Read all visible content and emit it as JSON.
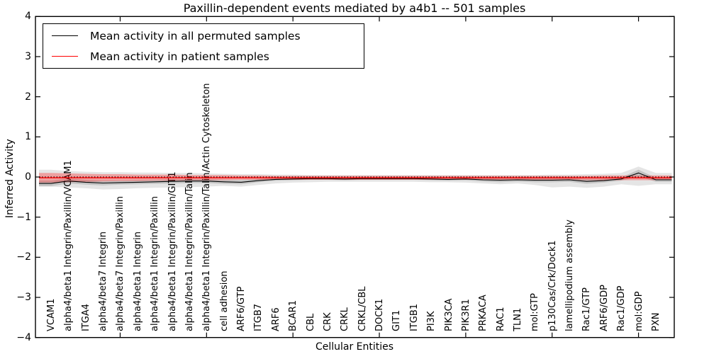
{
  "title": "Paxillin-dependent events mediated by a4b1 -- 501 samples",
  "legend": {
    "items": [
      {
        "label": "Mean activity in all permuted samples",
        "color": "#000000"
      },
      {
        "label": "Mean activity in patient samples",
        "color": "#ff0000"
      }
    ]
  },
  "axes": {
    "ylabel": "Inferred Activity",
    "xlabel": "Cellular Entities",
    "ytick_labels": [
      "4",
      "3",
      "2",
      "1",
      "0",
      "−1",
      "−2",
      "−3",
      "−4"
    ],
    "ytick_values": [
      4,
      3,
      2,
      1,
      0,
      -1,
      -2,
      -3,
      -4
    ]
  },
  "chart_data": {
    "type": "line",
    "title": "Paxillin-dependent events mediated by a4b1 -- 501 samples",
    "xlabel": "Cellular Entities",
    "ylabel": "Inferred Activity",
    "ylim": [
      -4,
      4
    ],
    "grid": false,
    "legend_position": "upper left",
    "x_major_tick_positions": [
      4,
      9,
      14,
      19,
      24,
      29,
      34
    ],
    "categories": [
      "VCAM1",
      "alpha4/beta1 Integrin/Paxillin/VCAM1",
      "ITGA4",
      "alpha4/beta7 Integrin",
      "alpha4/beta7 Integrin/Paxillin",
      "alpha4/beta1 Integrin",
      "alpha4/beta1 Integrin/Paxillin",
      "alpha4/beta1 Integrin/Paxillin/GIT1",
      "alpha4/beta1 Integrin/Paxillin/Talin",
      "alpha4/beta1 Integrin/Paxillin/Talin/Actin Cytoskeleton",
      "cell adhesion",
      "ARF6/GTP",
      "ITGB7",
      "ARF6",
      "BCAR1",
      "CBL",
      "CRK",
      "CRKL",
      "CRKL/CBL",
      "DOCK1",
      "GIT1",
      "ITGB1",
      "PI3K",
      "PIK3CA",
      "PIK3R1",
      "PRKACA",
      "RAC1",
      "TLN1",
      "mol:GTP",
      "p130Cas/Crk/Dock1",
      "lamellipodium assembly",
      "Rac1/GTP",
      "ARF6/GDP",
      "Rac1/GDP",
      "mol:GDP",
      "PXN"
    ],
    "series": [
      {
        "name": "Mean activity in all permuted samples",
        "color": "#000000",
        "width": 1.1,
        "values": [
          -0.16,
          -0.1,
          -0.13,
          -0.15,
          -0.14,
          -0.13,
          -0.12,
          -0.11,
          -0.1,
          -0.1,
          -0.12,
          -0.13,
          -0.09,
          -0.06,
          -0.05,
          -0.04,
          -0.04,
          -0.05,
          -0.04,
          -0.04,
          -0.04,
          -0.04,
          -0.05,
          -0.06,
          -0.05,
          -0.07,
          -0.08,
          -0.07,
          -0.08,
          -0.08,
          -0.07,
          -0.11,
          -0.09,
          -0.05,
          0.1,
          -0.07
        ]
      },
      {
        "name": "Mean activity in patient samples",
        "color": "#ff0000",
        "width": 1.4,
        "values": [
          -0.02,
          -0.02,
          -0.02,
          -0.02,
          -0.02,
          -0.02,
          -0.02,
          -0.02,
          -0.02,
          -0.02,
          -0.02,
          -0.02,
          -0.02,
          -0.02,
          -0.02,
          -0.02,
          -0.02,
          -0.02,
          -0.02,
          -0.02,
          -0.02,
          -0.02,
          -0.02,
          -0.02,
          -0.02,
          -0.02,
          -0.02,
          -0.02,
          -0.02,
          -0.02,
          -0.02,
          -0.02,
          -0.02,
          -0.02,
          -0.02,
          -0.02
        ]
      }
    ],
    "bands": [
      {
        "name": "permuted-range-outer",
        "color": "#000000",
        "opacity": 0.1,
        "upper": [
          0.18,
          0.15,
          0.13,
          0.12,
          0.12,
          0.11,
          0.11,
          0.1,
          0.1,
          0.09,
          0.08,
          0.07,
          0.07,
          0.06,
          0.06,
          0.05,
          0.05,
          0.05,
          0.05,
          0.05,
          0.05,
          0.05,
          0.05,
          0.05,
          0.05,
          0.05,
          0.05,
          0.05,
          0.05,
          0.06,
          0.06,
          0.07,
          0.08,
          0.1,
          0.26,
          0.1
        ],
        "lower": [
          -0.24,
          -0.26,
          -0.28,
          -0.31,
          -0.3,
          -0.28,
          -0.27,
          -0.26,
          -0.25,
          -0.24,
          -0.22,
          -0.24,
          -0.2,
          -0.16,
          -0.14,
          -0.13,
          -0.12,
          -0.12,
          -0.12,
          -0.12,
          -0.12,
          -0.12,
          -0.13,
          -0.13,
          -0.14,
          -0.16,
          -0.18,
          -0.16,
          -0.2,
          -0.26,
          -0.24,
          -0.27,
          -0.24,
          -0.18,
          -0.22,
          -0.18
        ]
      },
      {
        "name": "permuted-range-inner",
        "color": "#000000",
        "opacity": 0.14,
        "upper": [
          -0.09,
          -0.04,
          -0.07,
          -0.09,
          -0.09,
          -0.08,
          -0.07,
          -0.06,
          -0.05,
          -0.05,
          -0.07,
          -0.08,
          -0.05,
          -0.03,
          -0.02,
          -0.01,
          -0.01,
          -0.02,
          -0.01,
          -0.01,
          -0.01,
          -0.01,
          -0.02,
          -0.03,
          -0.02,
          -0.03,
          -0.03,
          -0.03,
          -0.03,
          -0.03,
          -0.02,
          -0.05,
          -0.04,
          -0.01,
          0.18,
          -0.02
        ],
        "lower": [
          -0.23,
          -0.16,
          -0.19,
          -0.21,
          -0.19,
          -0.18,
          -0.17,
          -0.16,
          -0.15,
          -0.15,
          -0.17,
          -0.18,
          -0.13,
          -0.09,
          -0.08,
          -0.07,
          -0.07,
          -0.08,
          -0.07,
          -0.07,
          -0.07,
          -0.07,
          -0.08,
          -0.09,
          -0.08,
          -0.11,
          -0.13,
          -0.11,
          -0.13,
          -0.13,
          -0.12,
          -0.17,
          -0.14,
          -0.09,
          0.02,
          -0.12
        ]
      },
      {
        "name": "patient-range",
        "color": "#ff0000",
        "opacity": 0.3,
        "upper": [
          0.1,
          0.09,
          0.08,
          0.07,
          0.07,
          0.06,
          0.06,
          0.06,
          0.05,
          0.05,
          0.05,
          0.04,
          0.04,
          0.03,
          0.03,
          0.03,
          0.03,
          0.03,
          0.03,
          0.03,
          0.03,
          0.03,
          0.03,
          0.03,
          0.03,
          0.03,
          0.03,
          0.03,
          0.03,
          0.03,
          0.03,
          0.03,
          0.04,
          0.04,
          0.04,
          0.04
        ],
        "lower": [
          -0.14,
          -0.13,
          -0.12,
          -0.11,
          -0.1,
          -0.1,
          -0.09,
          -0.09,
          -0.08,
          -0.08,
          -0.08,
          -0.07,
          -0.07,
          -0.07,
          -0.07,
          -0.07,
          -0.07,
          -0.07,
          -0.07,
          -0.07,
          -0.07,
          -0.07,
          -0.07,
          -0.07,
          -0.07,
          -0.07,
          -0.07,
          -0.07,
          -0.07,
          -0.07,
          -0.07,
          -0.08,
          -0.08,
          -0.08,
          -0.08,
          -0.08
        ]
      }
    ],
    "reference_line": {
      "y": 0,
      "style": "dotted",
      "color": "#000000"
    }
  }
}
